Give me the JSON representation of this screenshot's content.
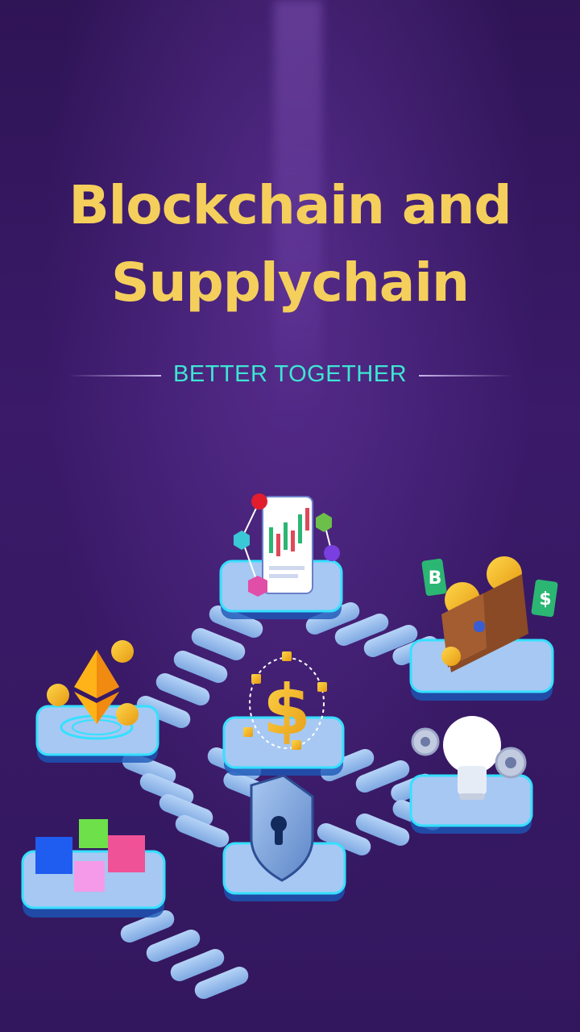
{
  "headline": {
    "line1": "Blockchain and",
    "line2": "Supplychain"
  },
  "tagline": "BETTER TOGETHER",
  "colors": {
    "background": "#34175f",
    "headline": "#f5cf5b",
    "tagline": "#3ee6d3",
    "platform": "#9cc4f0",
    "glow": "#35e0ff"
  },
  "illustration_icons": [
    "chart-icon",
    "wallet-icon",
    "ethereum-icon",
    "dollar-lock-icon",
    "lightbulb-icon",
    "cubes-icon",
    "shield-icon"
  ],
  "coin_labels": {
    "bitcoin": "B",
    "dollar": "$"
  }
}
